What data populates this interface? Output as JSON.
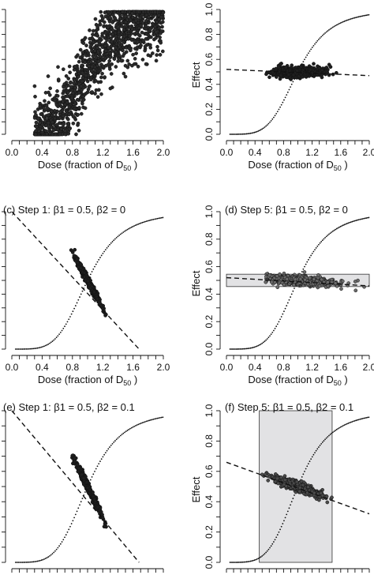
{
  "chart_data": [
    {
      "id": "a",
      "type": "scatter",
      "title": "",
      "xlabel": "Dose (fraction of D50 )",
      "ylabel": "",
      "xlim": [
        0.0,
        2.0
      ],
      "ylim": [
        0.0,
        1.0
      ],
      "x_ticks": [
        "0.0",
        "0.4",
        "0.8",
        "1.2",
        "1.6",
        "2.0"
      ],
      "y_ticks": [],
      "scatter_cloud": {
        "x_range": [
          0.3,
          2.0
        ],
        "center_curve": "logistic",
        "spread": 0.14,
        "n_points": 1400,
        "fill": "#2a2a2a"
      },
      "lines": [],
      "box": null
    },
    {
      "id": "b",
      "type": "scatter",
      "title": "",
      "xlabel": "Dose (fraction of D50 )",
      "ylabel": "Effect",
      "xlim": [
        0.0,
        2.0
      ],
      "ylim": [
        0.0,
        1.0
      ],
      "x_ticks": [
        "0.0",
        "0.4",
        "0.8",
        "1.2",
        "1.6",
        "2.0"
      ],
      "y_ticks": [
        "0.0",
        "0.2",
        "0.4",
        "0.6",
        "0.8",
        "1.0"
      ],
      "scatter_cloud": {
        "x_range": [
          0.55,
          1.55
        ],
        "center": 0.5,
        "slope": 0.0,
        "spread": 0.02,
        "n_points": 600,
        "fill": "#1e1e1e"
      },
      "lines": [
        {
          "style": "dotted",
          "kind": "logistic"
        },
        {
          "style": "dashed",
          "kind": "linear",
          "x": [
            0.0,
            2.0
          ],
          "y": [
            0.52,
            0.47
          ]
        }
      ],
      "box": null
    },
    {
      "id": "c",
      "type": "scatter",
      "title": "(c) Step 1:  β1 = 0.5, β2 = 0",
      "xlabel": "Dose (fraction of D50 )",
      "ylabel": "",
      "xlim": [
        0.0,
        2.0
      ],
      "ylim": [
        0.0,
        1.0
      ],
      "x_ticks": [
        "0.0",
        "0.4",
        "0.8",
        "1.2",
        "1.6",
        "2.0"
      ],
      "y_ticks": [],
      "scatter_cloud": {
        "x_range": [
          0.78,
          1.25
        ],
        "center": 0.5,
        "slope": -1.0,
        "spread": 0.015,
        "n_points": 500,
        "fill": "#1e1e1e"
      },
      "lines": [
        {
          "style": "dotted",
          "kind": "logistic"
        },
        {
          "style": "dashed",
          "kind": "linear",
          "x": [
            0.0,
            1.68
          ],
          "y": [
            1.0,
            0.0
          ]
        }
      ],
      "box": null
    },
    {
      "id": "d",
      "type": "scatter",
      "title": "(d) Step 5:  β1 = 0.5, β2 = 0",
      "xlabel": "Dose (fraction of D50 )",
      "ylabel": "Effect",
      "xlim": [
        0.0,
        2.0
      ],
      "ylim": [
        0.0,
        1.0
      ],
      "x_ticks": [
        "0.0",
        "0.4",
        "0.8",
        "1.2",
        "1.6",
        "2.0"
      ],
      "y_ticks": [
        "0.0",
        "0.2",
        "0.4",
        "0.6",
        "0.8",
        "1.0"
      ],
      "scatter_cloud": {
        "x_range": [
          0.55,
          1.95
        ],
        "center": 0.5,
        "slope": -0.04,
        "spread": 0.018,
        "n_points": 600,
        "fill": "#6a6a6a"
      },
      "lines": [
        {
          "style": "dotted",
          "kind": "logistic"
        },
        {
          "style": "dashed",
          "kind": "linear",
          "x": [
            0.0,
            2.0
          ],
          "y": [
            0.52,
            0.46
          ]
        }
      ],
      "box": {
        "x": [
          0.0,
          2.0
        ],
        "y": [
          0.455,
          0.545
        ]
      }
    },
    {
      "id": "e",
      "type": "scatter",
      "title": "(e) Step 1:  β1 = 0.5, β2 = 0.1",
      "xlabel": "",
      "ylabel": "",
      "xlim": [
        0.0,
        2.0
      ],
      "ylim": [
        0.0,
        1.0
      ],
      "x_ticks": [],
      "y_ticks": [],
      "scatter_cloud": {
        "x_range": [
          0.78,
          1.25
        ],
        "center": 0.5,
        "slope": -1.0,
        "spread": 0.015,
        "n_points": 500,
        "fill": "#1e1e1e"
      },
      "lines": [
        {
          "style": "dotted",
          "kind": "logistic"
        },
        {
          "style": "dashed",
          "kind": "linear",
          "x": [
            0.0,
            1.68
          ],
          "y": [
            1.0,
            0.0
          ]
        }
      ],
      "box": null
    },
    {
      "id": "f",
      "type": "scatter",
      "title": "(f) Step 5:  β1 = 0.5, β2 = 0.1",
      "xlabel": "",
      "ylabel": "Effect",
      "xlim": [
        0.0,
        2.0
      ],
      "ylim": [
        0.0,
        1.0
      ],
      "x_ticks": [],
      "y_ticks": [
        "0.0",
        "0.2",
        "0.4",
        "0.6",
        "0.8",
        "1.0"
      ],
      "scatter_cloud": {
        "x_range": [
          0.5,
          1.48
        ],
        "center": 0.5,
        "slope": -0.17,
        "spread": 0.015,
        "n_points": 600,
        "fill": "#4a4a4a"
      },
      "lines": [
        {
          "style": "dotted",
          "kind": "logistic"
        },
        {
          "style": "dashed",
          "kind": "linear",
          "x": [
            0.0,
            2.0
          ],
          "y": [
            0.66,
            0.32
          ]
        }
      ],
      "box": {
        "x": [
          0.46,
          1.48
        ],
        "y": [
          0.0,
          1.0
        ]
      }
    }
  ]
}
